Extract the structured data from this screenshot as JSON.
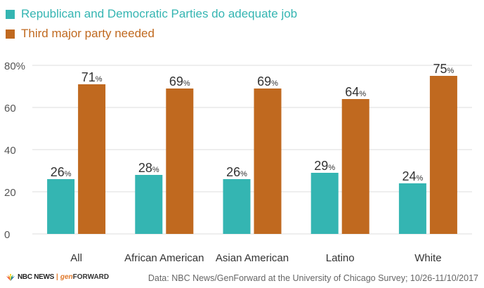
{
  "colors": {
    "series1": "#34b5b2",
    "series2": "#c0691f",
    "grid": "#dcdcdc",
    "axis_text": "#555555",
    "label_text": "#333333"
  },
  "legend": {
    "items": [
      {
        "label": "Republican and Democratic Parties do adequate job",
        "color": "#34b5b2"
      },
      {
        "label": "Third major party needed",
        "color": "#c0691f"
      }
    ]
  },
  "chart_data": {
    "type": "bar",
    "categories": [
      "All",
      "African American",
      "Asian American",
      "Latino",
      "White"
    ],
    "series": [
      {
        "name": "Republican and Democratic Parties do adequate job",
        "values": [
          26,
          28,
          26,
          29,
          24
        ]
      },
      {
        "name": "Third major party needed",
        "values": [
          71,
          69,
          69,
          64,
          75
        ]
      }
    ],
    "ylim": [
      0,
      80
    ],
    "yticks": [
      "0",
      "20",
      "40",
      "60",
      "80%"
    ],
    "value_suffix": "%",
    "grid": true,
    "legend_position": "top-left"
  },
  "footer": {
    "brand": {
      "nbc": "NBC NEWS",
      "separator": "|",
      "gen": "gen",
      "forward": "FORWARD"
    },
    "source": "Data: NBC News/GenForward at the University of Chicago Survey; 10/26-11/10/2017"
  }
}
